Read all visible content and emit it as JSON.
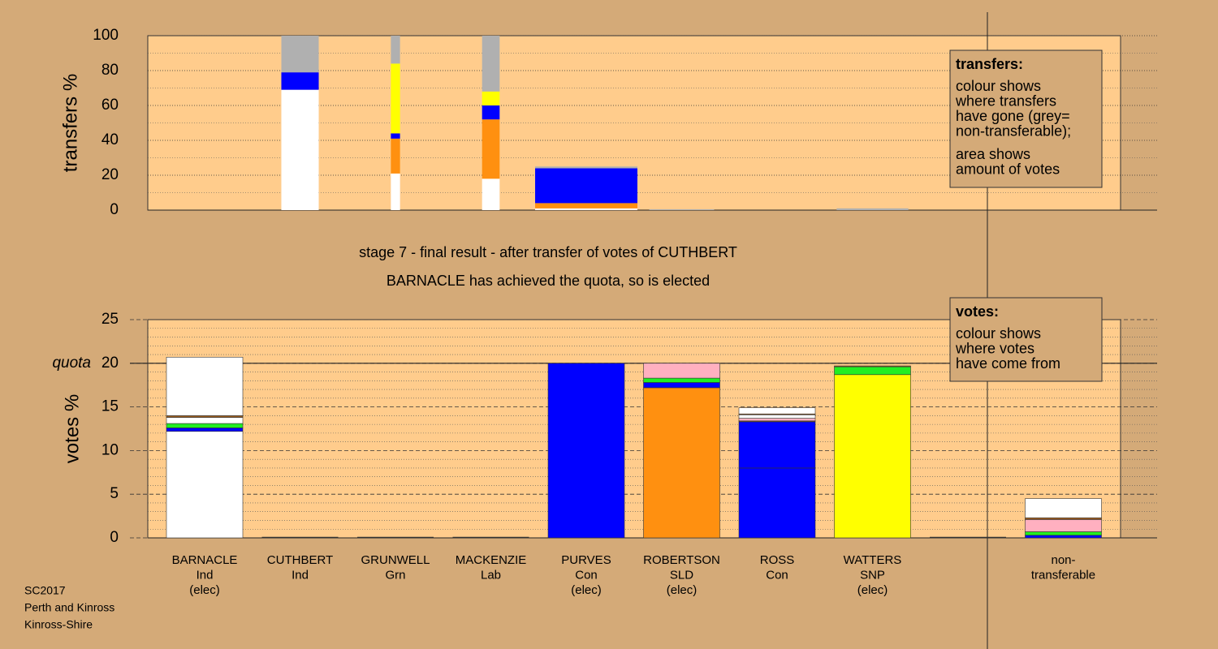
{
  "chart_data": [
    {
      "type": "transfer-bar",
      "ylabel": "transfers %",
      "ylim": [
        0,
        100
      ],
      "yticks": [
        0,
        20,
        40,
        60,
        80,
        100
      ],
      "minor_yticks": [
        10,
        30,
        50,
        70,
        90
      ],
      "columns": [
        null,
        {
          "amount": 0.49,
          "segments": [
            {
              "color": "#ffffff",
              "value": 69
            },
            {
              "color": "#0000ff",
              "value": 10
            },
            {
              "color": "#b0b0b0",
              "value": 21
            }
          ]
        },
        {
          "amount": 0.12,
          "segments": [
            {
              "color": "#ffffff",
              "value": 21
            },
            {
              "color": "#ff9010",
              "value": 20
            },
            {
              "color": "#0000ff",
              "value": 3
            },
            {
              "color": "#ffff00",
              "value": 40
            },
            {
              "color": "#b0b0b0",
              "value": 16
            }
          ]
        },
        {
          "amount": 0.23,
          "segments": [
            {
              "color": "#ffffff",
              "value": 18
            },
            {
              "color": "#ff9010",
              "value": 34
            },
            {
              "color": "#0000ff",
              "value": 8
            },
            {
              "color": "#ffff00",
              "value": 8
            },
            {
              "color": "#b0b0b0",
              "value": 32
            }
          ]
        },
        {
          "amount": 1.34,
          "segments": [
            {
              "color": "#ffffff",
              "value": 1
            },
            {
              "color": "#ff9010",
              "value": 3
            },
            {
              "color": "#0000ff",
              "value": 20
            },
            {
              "color": "#b0b0b0",
              "value": 1
            }
          ]
        },
        {
          "amount": 0.85,
          "segments": [
            {
              "color": "#b0b0b0",
              "value": 0.5
            }
          ]
        },
        null,
        {
          "amount": 0.94,
          "segments": [
            {
              "color": "#b0b0b0",
              "value": 1
            }
          ]
        },
        null,
        null
      ],
      "note": {
        "title": "transfers:",
        "paragraphs": [
          [
            "colour shows",
            "where transfers",
            "have gone (grey=",
            "non-transferable);"
          ],
          [
            "area shows",
            "amount of votes"
          ]
        ]
      }
    },
    {
      "type": "stacked-bar",
      "ylabel": "votes %",
      "ylim": [
        0,
        25
      ],
      "yticks": [
        0,
        5,
        10,
        15,
        20,
        25
      ],
      "minor_yticks": [
        1,
        2,
        3,
        4,
        6,
        7,
        8,
        9,
        11,
        12,
        13,
        14,
        16,
        17,
        18,
        19,
        21,
        22,
        23,
        24
      ],
      "quota": {
        "label": "quota",
        "value": 20
      },
      "categories": [
        [
          "BARNACLE",
          "Ind",
          "(elec)"
        ],
        [
          "CUTHBERT",
          "Ind"
        ],
        [
          "GRUNWELL",
          "Grn"
        ],
        [
          "MACKENZIE",
          "Lab"
        ],
        [
          "PURVES",
          "Con",
          "(elec)"
        ],
        [
          "ROBERTSON",
          "SLD",
          "(elec)"
        ],
        [
          "ROSS",
          "Con"
        ],
        [
          "WATTERS",
          "SNP",
          "(elec)"
        ],
        null,
        [
          "non-",
          "transferable"
        ]
      ],
      "stacks": [
        [
          {
            "color": "#ffffff",
            "value": 12.2
          },
          {
            "color": "#0000ff",
            "value": 0.4
          },
          {
            "color": "#22ee22",
            "value": 0.5
          },
          {
            "color": "#ffffff",
            "value": 0.7
          },
          {
            "color": "#a06020",
            "value": 0.2
          },
          {
            "color": "#ffffff",
            "value": 6.7
          }
        ],
        [],
        [],
        [],
        [
          {
            "color": "#0000ff",
            "value": 20
          }
        ],
        [
          {
            "color": "#ff9010",
            "value": 17.2
          },
          {
            "color": "#0000ff",
            "value": 0.6
          },
          {
            "color": "#22ee22",
            "value": 0.5
          },
          {
            "color": "#ffb0c0",
            "value": 1.7
          }
        ],
        [
          {
            "color": "#0000ff",
            "value": 8.0
          },
          {
            "color": "#0000ff",
            "value": 5.3
          },
          {
            "color": "#a06020",
            "value": 0.1
          },
          {
            "color": "#ffb0c0",
            "value": 0.3
          },
          {
            "color": "#ffffff",
            "value": 0.4
          },
          {
            "color": "#a06020",
            "value": 0.1
          },
          {
            "color": "#ffffff",
            "value": 0.7
          }
        ],
        [
          {
            "color": "#ffff00",
            "value": 18.7
          },
          {
            "color": "#22ee22",
            "value": 0.9
          },
          {
            "color": "#a06020",
            "value": 0.1
          }
        ],
        [],
        [
          {
            "color": "#0000ff",
            "value": 0.3
          },
          {
            "color": "#22ee22",
            "value": 0.4
          },
          {
            "color": "#ffb0c0",
            "value": 1.4
          },
          {
            "color": "#a06020",
            "value": 0.2
          },
          {
            "color": "#ffffff",
            "value": 2.2
          }
        ]
      ],
      "note": {
        "title": "votes:",
        "paragraphs": [
          [
            "colour shows",
            "where votes",
            "have come from"
          ]
        ]
      }
    }
  ],
  "stage": [
    "stage 7 - final result - after transfer of votes of CUTHBERT",
    "BARNACLE has achieved the quota, so is elected"
  ],
  "footer": [
    "SC2017",
    "Perth and Kinross",
    "Kinross-Shire"
  ]
}
